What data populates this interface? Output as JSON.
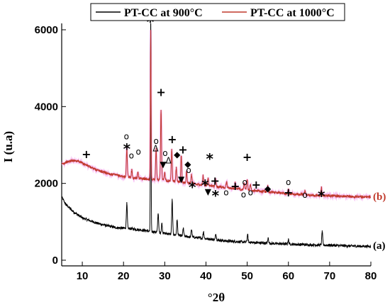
{
  "chart_data": {
    "type": "line",
    "xlabel": "°2θ",
    "ylabel": "I (u.a)",
    "xlim": [
      5,
      80
    ],
    "ylim": [
      0,
      6000
    ],
    "x_ticks": [
      10,
      20,
      30,
      40,
      50,
      60,
      70,
      80
    ],
    "y_ticks": [
      0,
      2000,
      4000,
      6000
    ],
    "legend_position": "top",
    "series": [
      {
        "name": "PT-CC at 900°C",
        "color": "#000000",
        "curve_label": "(a)",
        "baseline": [
          [
            5,
            1650
          ],
          [
            6,
            1450
          ],
          [
            8,
            1250
          ],
          [
            10,
            1100
          ],
          [
            14,
            950
          ],
          [
            18,
            850
          ],
          [
            22,
            820
          ],
          [
            26,
            760
          ],
          [
            30,
            700
          ],
          [
            35,
            620
          ],
          [
            40,
            560
          ],
          [
            45,
            500
          ],
          [
            50,
            470
          ],
          [
            55,
            440
          ],
          [
            60,
            420
          ],
          [
            65,
            400
          ],
          [
            70,
            390
          ],
          [
            75,
            370
          ],
          [
            80,
            360
          ]
        ],
        "peaks": [
          [
            20.8,
            650
          ],
          [
            26.6,
            5650
          ],
          [
            28.4,
            500
          ],
          [
            29.3,
            250
          ],
          [
            31.8,
            900
          ],
          [
            33.0,
            400
          ],
          [
            34.5,
            200
          ],
          [
            36.5,
            200
          ],
          [
            39.4,
            180
          ],
          [
            42.4,
            150
          ],
          [
            50.1,
            200
          ],
          [
            55.1,
            140
          ],
          [
            60.0,
            120
          ],
          [
            68.2,
            350
          ]
        ]
      },
      {
        "name": "PT-CC at 1000°C",
        "color": "#c0392b",
        "curve_label": "(b)",
        "baseline": [
          [
            5,
            2500
          ],
          [
            6,
            2550
          ],
          [
            7,
            2580
          ],
          [
            8,
            2600
          ],
          [
            9,
            2580
          ],
          [
            10,
            2530
          ],
          [
            12,
            2420
          ],
          [
            14,
            2330
          ],
          [
            17,
            2240
          ],
          [
            20,
            2180
          ],
          [
            22,
            2150
          ],
          [
            25,
            2120
          ],
          [
            28,
            2100
          ],
          [
            30,
            2080
          ],
          [
            33,
            2050
          ],
          [
            36,
            2000
          ],
          [
            40,
            1950
          ],
          [
            45,
            1890
          ],
          [
            50,
            1830
          ],
          [
            55,
            1780
          ],
          [
            60,
            1730
          ],
          [
            65,
            1700
          ],
          [
            70,
            1680
          ],
          [
            75,
            1660
          ],
          [
            80,
            1650
          ]
        ],
        "peaks": [
          [
            20.8,
            750
          ],
          [
            22.0,
            200
          ],
          [
            23.5,
            150
          ],
          [
            26.6,
            3900
          ],
          [
            27.9,
            800
          ],
          [
            29.1,
            1850
          ],
          [
            30.0,
            200
          ],
          [
            31.7,
            850
          ],
          [
            32.8,
            350
          ],
          [
            34.0,
            700
          ],
          [
            35.3,
            300
          ],
          [
            36.5,
            250
          ],
          [
            39.3,
            250
          ],
          [
            40.5,
            200
          ],
          [
            42.3,
            200
          ],
          [
            45.0,
            150
          ],
          [
            47.1,
            150
          ],
          [
            49.3,
            150
          ],
          [
            50.0,
            300
          ],
          [
            50.8,
            150
          ],
          [
            55.0,
            150
          ],
          [
            60.0,
            120
          ],
          [
            64.0,
            100
          ],
          [
            68.0,
            200
          ]
        ]
      }
    ],
    "annotations": [
      {
        "symbol": "+",
        "x": 11.0,
        "y": 2750
      },
      {
        "symbol": "o",
        "x": 20.7,
        "y": 3240
      },
      {
        "symbol": "*",
        "x": 20.8,
        "y": 2940
      },
      {
        "symbol": "o",
        "x": 21.9,
        "y": 2740
      },
      {
        "symbol": "o",
        "x": 23.6,
        "y": 2840
      },
      {
        "symbol": "*",
        "x": 26.5,
        "y": 6240
      },
      {
        "symbol": "o",
        "x": 27.9,
        "y": 3120
      },
      {
        "symbol": "Δ",
        "x": 27.8,
        "y": 2930
      },
      {
        "symbol": "+",
        "x": 29.1,
        "y": 4370
      },
      {
        "symbol": "o",
        "x": 30.1,
        "y": 2810
      },
      {
        "symbol": "▼",
        "x": 29.6,
        "y": 2510
      },
      {
        "symbol": "Δ",
        "x": 30.9,
        "y": 2610
      },
      {
        "symbol": "+",
        "x": 31.8,
        "y": 3140
      },
      {
        "symbol": "◆",
        "x": 33.0,
        "y": 2770
      },
      {
        "symbol": "+",
        "x": 34.4,
        "y": 2870
      },
      {
        "symbol": "◆",
        "x": 35.6,
        "y": 2520
      },
      {
        "symbol": "o",
        "x": 35.8,
        "y": 2360
      },
      {
        "symbol": "▼",
        "x": 34.0,
        "y": 2120
      },
      {
        "symbol": "*",
        "x": 36.7,
        "y": 1940
      },
      {
        "symbol": "*",
        "x": 39.8,
        "y": 1990
      },
      {
        "symbol": "▼",
        "x": 40.5,
        "y": 1800
      },
      {
        "symbol": "*",
        "x": 40.9,
        "y": 2680
      },
      {
        "symbol": "+",
        "x": 42.2,
        "y": 2060
      },
      {
        "symbol": "*",
        "x": 42.3,
        "y": 1720
      },
      {
        "symbol": "o",
        "x": 44.9,
        "y": 1780
      },
      {
        "symbol": "+",
        "x": 47.1,
        "y": 1920
      },
      {
        "symbol": "o",
        "x": 49.4,
        "y": 2050
      },
      {
        "symbol": "o",
        "x": 49.1,
        "y": 1730
      },
      {
        "symbol": "+",
        "x": 50.0,
        "y": 2680
      },
      {
        "symbol": "o",
        "x": 50.8,
        "y": 1780
      },
      {
        "symbol": "+",
        "x": 52.2,
        "y": 1960
      },
      {
        "symbol": "◆",
        "x": 55.0,
        "y": 1880
      },
      {
        "symbol": "o",
        "x": 60.0,
        "y": 2050
      },
      {
        "symbol": "+",
        "x": 60.0,
        "y": 1750
      },
      {
        "symbol": "o",
        "x": 64.0,
        "y": 1720
      },
      {
        "symbol": "*",
        "x": 68.0,
        "y": 1710
      }
    ]
  }
}
